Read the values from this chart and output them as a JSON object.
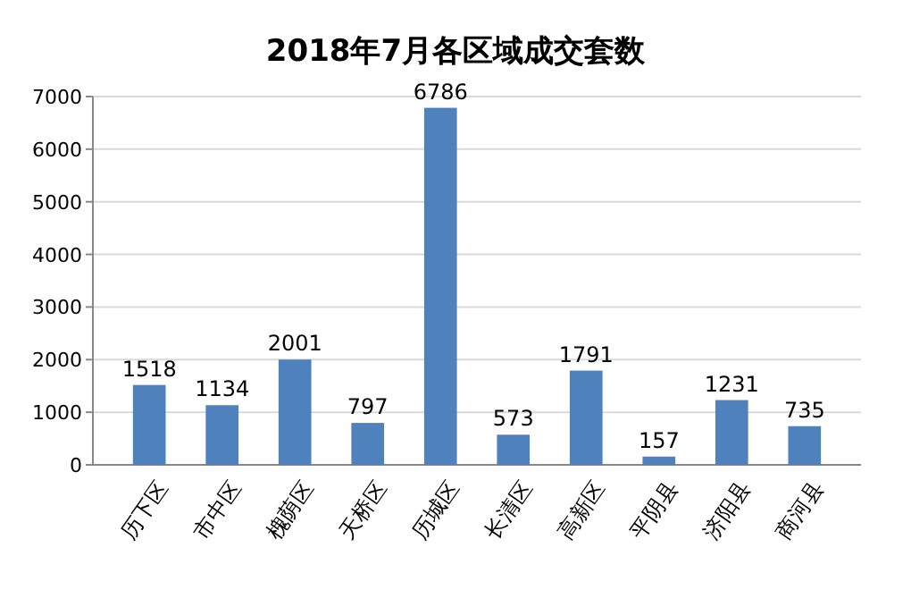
{
  "chart_data": {
    "type": "bar",
    "title": "2018年7月各区域成交套数",
    "categories": [
      "历下区",
      "市中区",
      "槐荫区",
      "天桥区",
      "历城区",
      "长清区",
      "高新区",
      "平阴县",
      "济阳县",
      "商河县"
    ],
    "values": [
      1518,
      1134,
      2001,
      797,
      6786,
      573,
      1791,
      157,
      1231,
      735
    ],
    "color": "#4f81bd",
    "ylim": [
      0,
      7000
    ],
    "yticks": [
      0,
      1000,
      2000,
      3000,
      4000,
      5000,
      6000,
      7000
    ],
    "grid": "y",
    "data_labels": true
  }
}
